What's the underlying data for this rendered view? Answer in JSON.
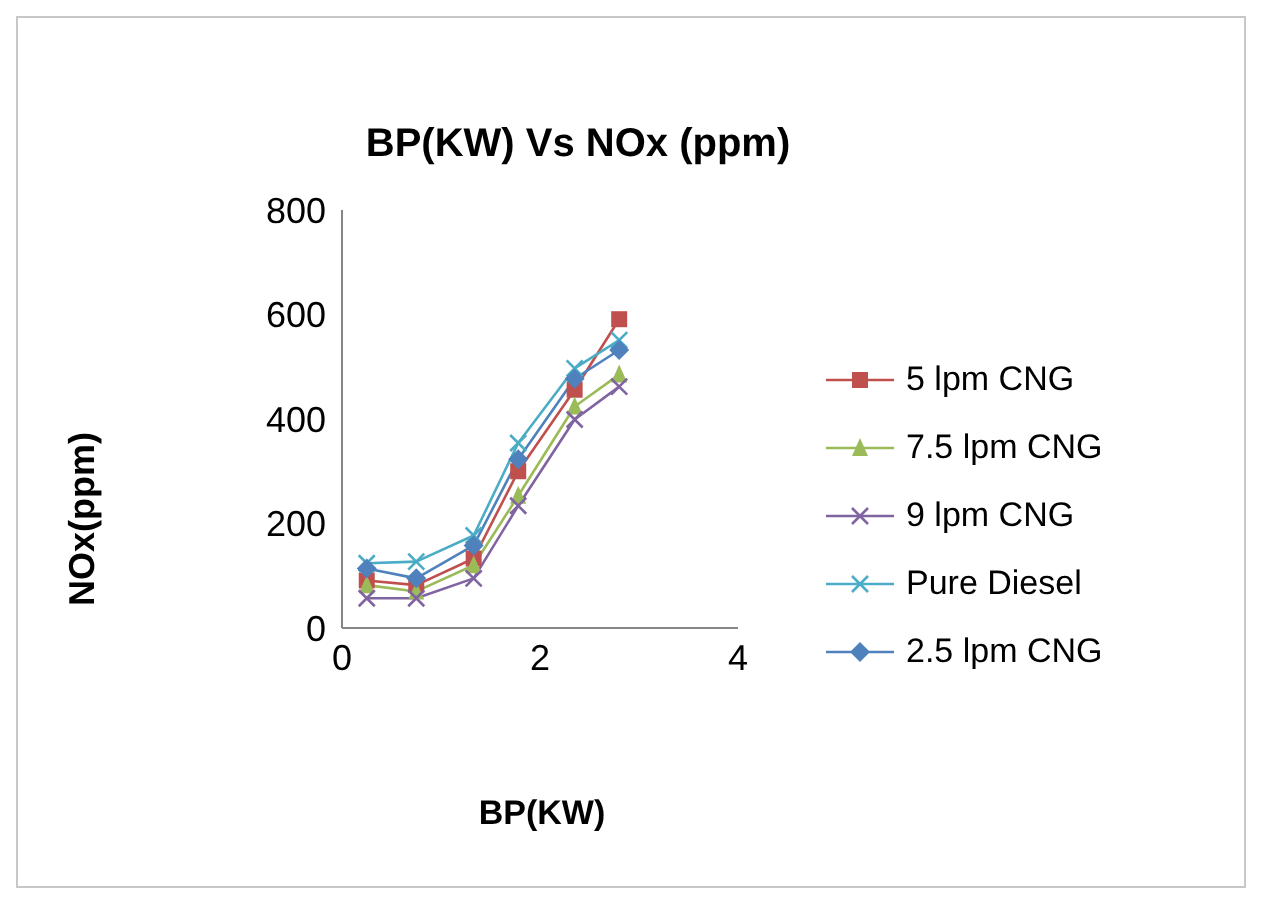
{
  "chart_data": {
    "type": "line",
    "title": "BP(KW) Vs NOx (ppm)",
    "xlabel": "BP(KW)",
    "ylabel": "NOx(ppm)",
    "xlim": [
      0,
      4
    ],
    "xticks": [
      0,
      2,
      4
    ],
    "ylim": [
      0,
      800
    ],
    "yticks": [
      0,
      200,
      400,
      600,
      800
    ],
    "grid": false,
    "legend": "right",
    "x": [
      0.25,
      0.75,
      1.33,
      1.78,
      2.35,
      2.8
    ],
    "series": [
      {
        "name": "5 lpm CNG",
        "color": "#c0504d",
        "marker": "square",
        "values": [
          91,
          82,
          133,
          300,
          456,
          591
        ]
      },
      {
        "name": "7.5 lpm CNG",
        "color": "#9bbb59",
        "marker": "triangle",
        "values": [
          82,
          70,
          120,
          253,
          424,
          485
        ]
      },
      {
        "name": "9 lpm CNG",
        "color": "#8064a2",
        "marker": "cross",
        "values": [
          57,
          57,
          95,
          234,
          399,
          462
        ]
      },
      {
        "name": "Pure Diesel",
        "color": "#4bacc6",
        "marker": "cross",
        "values": [
          124,
          127,
          177,
          354,
          497,
          551
        ]
      },
      {
        "name": "2.5 lpm CNG",
        "color": "#4f81bd",
        "marker": "diamond",
        "values": [
          114,
          95,
          158,
          323,
          477,
          532
        ]
      }
    ]
  }
}
